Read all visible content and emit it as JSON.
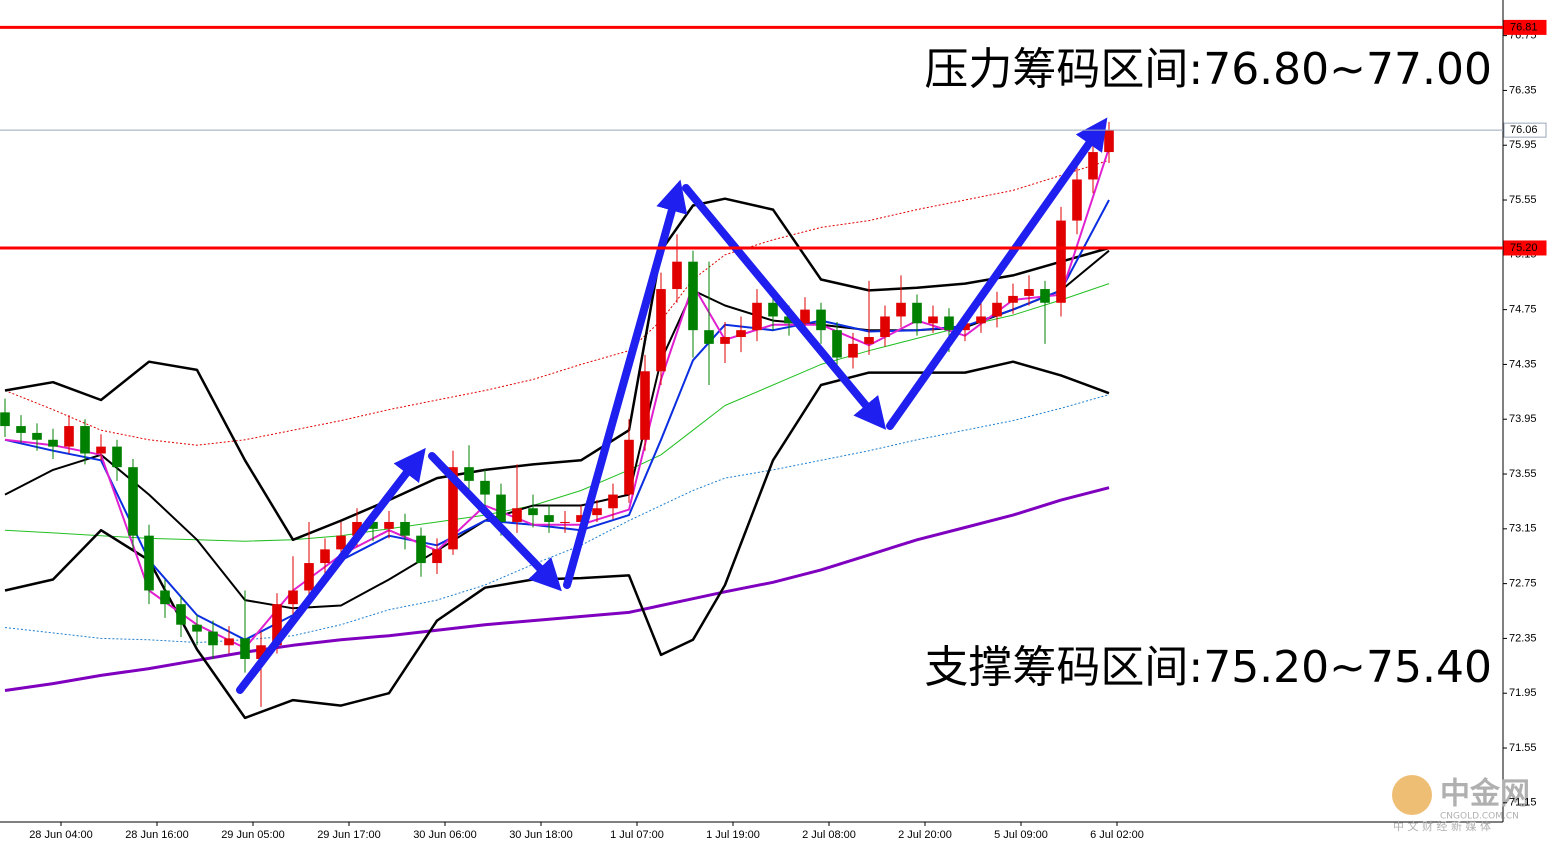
{
  "chart_data": {
    "type": "candlestick",
    "ylim": [
      71.01,
      77.01
    ],
    "yticks": [
      71.15,
      71.55,
      71.95,
      72.35,
      72.75,
      73.15,
      73.55,
      73.95,
      74.35,
      74.75,
      75.15,
      75.55,
      75.95,
      76.35,
      76.75
    ],
    "xlim": [
      -0.3125,
      93.625
    ],
    "xticks": [
      {
        "value": 3.5,
        "label": "28 Jun 04:00"
      },
      {
        "value": 9.5,
        "label": "28 Jun 16:00"
      },
      {
        "value": 15.5,
        "label": "29 Jun 05:00"
      },
      {
        "value": 21.5,
        "label": "29 Jun 17:00"
      },
      {
        "value": 27.5,
        "label": "30 Jun 06:00"
      },
      {
        "value": 33.5,
        "label": "30 Jun 18:00"
      },
      {
        "value": 39.5,
        "label": "1 Jul 07:00"
      },
      {
        "value": 45.5,
        "label": "1 Jul 19:00"
      },
      {
        "value": 51.5,
        "label": "2 Jul 08:00"
      },
      {
        "value": 57.5,
        "label": "2 Jul 20:00"
      },
      {
        "value": 63.5,
        "label": "5 Jul 09:00"
      },
      {
        "value": 69.5,
        "label": "6 Jul 02:00"
      }
    ],
    "up_color": "#e00000",
    "down_color": "#008000",
    "candles": [
      [
        74.0,
        74.1,
        73.82,
        73.9
      ],
      [
        73.9,
        73.98,
        73.78,
        73.85
      ],
      [
        73.85,
        73.92,
        73.72,
        73.8
      ],
      [
        73.8,
        73.88,
        73.66,
        73.75
      ],
      [
        73.75,
        73.98,
        73.7,
        73.9
      ],
      [
        73.9,
        73.95,
        73.62,
        73.7
      ],
      [
        73.7,
        73.84,
        73.65,
        73.75
      ],
      [
        73.75,
        73.8,
        73.5,
        73.6
      ],
      [
        73.6,
        73.66,
        73.0,
        73.1
      ],
      [
        73.1,
        73.18,
        72.6,
        72.7
      ],
      [
        72.7,
        72.78,
        72.5,
        72.6
      ],
      [
        72.6,
        72.66,
        72.36,
        72.45
      ],
      [
        72.45,
        72.52,
        72.3,
        72.4
      ],
      [
        72.4,
        72.48,
        72.2,
        72.3
      ],
      [
        72.3,
        72.44,
        72.24,
        72.35
      ],
      [
        72.35,
        72.7,
        72.1,
        72.2
      ],
      [
        72.2,
        72.4,
        71.85,
        72.3
      ],
      [
        72.3,
        72.68,
        72.24,
        72.6
      ],
      [
        72.6,
        72.95,
        72.52,
        72.7
      ],
      [
        72.7,
        73.2,
        72.64,
        72.9
      ],
      [
        72.9,
        73.08,
        72.8,
        73.0
      ],
      [
        73.0,
        73.2,
        72.92,
        73.1
      ],
      [
        73.1,
        73.3,
        73.02,
        73.2
      ],
      [
        73.2,
        73.28,
        73.06,
        73.15
      ],
      [
        73.15,
        73.28,
        73.08,
        73.2
      ],
      [
        73.2,
        73.26,
        73.0,
        73.1
      ],
      [
        73.1,
        73.16,
        72.8,
        72.9
      ],
      [
        72.9,
        73.08,
        72.82,
        73.0
      ],
      [
        73.0,
        73.72,
        72.96,
        73.6
      ],
      [
        73.6,
        73.76,
        73.44,
        73.5
      ],
      [
        73.5,
        73.58,
        73.3,
        73.4
      ],
      [
        73.4,
        73.48,
        73.1,
        73.2
      ],
      [
        73.2,
        73.62,
        73.12,
        73.3
      ],
      [
        73.3,
        73.4,
        73.16,
        73.25
      ],
      [
        73.25,
        73.32,
        73.12,
        73.2
      ],
      [
        73.2,
        73.28,
        73.12,
        73.2
      ],
      [
        73.2,
        73.32,
        73.14,
        73.25
      ],
      [
        73.25,
        73.36,
        73.2,
        73.3
      ],
      [
        73.3,
        73.48,
        73.22,
        73.4
      ],
      [
        73.4,
        73.95,
        73.34,
        73.8
      ],
      [
        73.8,
        74.42,
        73.72,
        74.3
      ],
      [
        74.3,
        75.02,
        74.2,
        74.9
      ],
      [
        74.9,
        75.3,
        74.8,
        75.1
      ],
      [
        75.1,
        75.18,
        74.4,
        74.6
      ],
      [
        74.6,
        75.1,
        74.2,
        74.5
      ],
      [
        74.5,
        74.66,
        74.36,
        74.55
      ],
      [
        74.55,
        74.7,
        74.44,
        74.6
      ],
      [
        74.6,
        74.9,
        74.52,
        74.8
      ],
      [
        74.8,
        74.86,
        74.6,
        74.7
      ],
      [
        74.7,
        74.78,
        74.56,
        74.65
      ],
      [
        74.65,
        74.84,
        74.58,
        74.75
      ],
      [
        74.75,
        74.8,
        74.5,
        74.6
      ],
      [
        74.6,
        74.66,
        74.3,
        74.4
      ],
      [
        74.4,
        74.58,
        74.32,
        74.5
      ],
      [
        74.5,
        74.96,
        74.42,
        74.55
      ],
      [
        74.55,
        74.78,
        74.48,
        74.7
      ],
      [
        74.7,
        75.0,
        74.62,
        74.8
      ],
      [
        74.8,
        74.86,
        74.56,
        74.65
      ],
      [
        74.65,
        74.78,
        74.58,
        74.7
      ],
      [
        74.7,
        74.76,
        74.44,
        74.6
      ],
      [
        74.6,
        74.72,
        74.52,
        74.65
      ],
      [
        74.65,
        74.86,
        74.58,
        74.7
      ],
      [
        74.7,
        74.88,
        74.62,
        74.8
      ],
      [
        74.8,
        74.94,
        74.72,
        74.85
      ],
      [
        74.85,
        75.0,
        74.78,
        74.9
      ],
      [
        74.9,
        74.96,
        74.5,
        74.8
      ],
      [
        74.8,
        75.5,
        74.7,
        75.4
      ],
      [
        75.4,
        75.8,
        75.3,
        75.7
      ],
      [
        75.7,
        76.0,
        75.6,
        75.9
      ],
      [
        75.9,
        76.12,
        75.82,
        76.06
      ]
    ],
    "x": [
      0,
      3,
      6,
      9,
      12,
      15,
      18,
      21,
      24,
      27,
      30,
      33,
      36,
      39,
      41,
      43,
      45,
      48,
      51,
      54,
      57,
      60,
      63,
      66,
      69
    ],
    "series": [
      {
        "color": "#8000c0",
        "width": 3,
        "values": [
          71.97,
          72.02,
          72.08,
          72.13,
          72.19,
          72.25,
          72.3,
          72.34,
          72.37,
          72.41,
          72.45,
          72.48,
          72.51,
          72.54,
          72.59,
          72.64,
          72.69,
          72.76,
          72.85,
          72.96,
          73.07,
          73.16,
          73.25,
          73.36,
          73.45
        ]
      },
      {
        "color": "#22c022",
        "width": 1,
        "values": [
          73.14,
          73.12,
          73.1,
          73.08,
          73.07,
          73.06,
          73.07,
          73.1,
          73.15,
          73.2,
          73.25,
          73.32,
          73.43,
          73.58,
          73.69,
          73.87,
          74.05,
          74.2,
          74.35,
          74.45,
          74.54,
          74.63,
          74.71,
          74.82,
          74.94
        ]
      },
      {
        "color": "#e00000",
        "width": 1,
        "dash": "2 2",
        "values": [
          74.16,
          74.02,
          73.87,
          73.8,
          73.76,
          73.8,
          73.87,
          73.94,
          74.02,
          74.09,
          74.16,
          74.24,
          74.35,
          74.45,
          74.67,
          74.97,
          75.15,
          75.26,
          75.35,
          75.4,
          75.48,
          75.55,
          75.62,
          75.73,
          75.84
        ]
      },
      {
        "color": "#1e7fd0",
        "width": 1,
        "dash": "2 2",
        "values": [
          72.43,
          72.39,
          72.35,
          72.34,
          72.32,
          72.34,
          72.37,
          72.45,
          72.56,
          72.63,
          72.74,
          72.89,
          73.03,
          73.21,
          73.32,
          73.43,
          73.52,
          73.58,
          73.65,
          73.72,
          73.8,
          73.87,
          73.94,
          74.03,
          74.13
        ]
      },
      {
        "color": "#000000",
        "width": 2.5,
        "values": [
          74.16,
          74.22,
          74.09,
          74.37,
          74.31,
          73.65,
          73.07,
          73.21,
          73.36,
          73.52,
          73.58,
          73.62,
          73.65,
          73.87,
          75.18,
          75.51,
          75.56,
          75.48,
          74.97,
          74.89,
          74.91,
          74.94,
          75.0,
          75.1,
          75.2
        ]
      },
      {
        "color": "#000000",
        "width": 2.5,
        "values": [
          72.7,
          72.78,
          73.14,
          72.92,
          72.27,
          71.77,
          71.9,
          71.86,
          71.95,
          72.48,
          72.72,
          72.78,
          72.79,
          72.81,
          72.23,
          72.34,
          72.74,
          73.65,
          74.2,
          74.29,
          74.29,
          74.29,
          74.37,
          74.27,
          74.14
        ]
      },
      {
        "color": "#000000",
        "width": 2,
        "values": [
          73.4,
          73.58,
          73.69,
          73.4,
          73.07,
          72.63,
          72.57,
          72.59,
          72.78,
          72.99,
          73.21,
          73.32,
          73.32,
          73.4,
          74.38,
          74.89,
          74.78,
          74.67,
          74.64,
          74.6,
          74.6,
          74.62,
          74.75,
          74.89,
          75.18
        ]
      },
      {
        "color": "#0a2ee0",
        "width": 2,
        "values": [
          73.8,
          73.72,
          73.65,
          72.92,
          72.52,
          72.34,
          72.52,
          72.92,
          73.1,
          73.03,
          73.21,
          73.18,
          73.14,
          73.25,
          73.8,
          74.38,
          74.64,
          74.6,
          74.67,
          74.59,
          74.6,
          74.63,
          74.75,
          74.89,
          75.55
        ]
      },
      {
        "color": "#e020d0",
        "width": 2,
        "values": [
          73.8,
          73.76,
          73.69,
          72.7,
          72.45,
          72.28,
          72.7,
          72.96,
          73.14,
          72.99,
          73.32,
          73.18,
          73.18,
          73.29,
          74.24,
          74.93,
          74.53,
          74.64,
          74.64,
          74.49,
          74.67,
          74.56,
          74.82,
          74.86,
          75.93
        ]
      }
    ],
    "levels": [
      {
        "value": 76.81,
        "label": "76.81",
        "color": "#ff0000",
        "width": 3,
        "box": "#ff0000",
        "text_color": "#ffffff"
      },
      {
        "value": 75.2,
        "label": "75.20",
        "color": "#ff0000",
        "width": 3,
        "box": "#ff0000",
        "text_color": "#ffffff"
      },
      {
        "value": 76.06,
        "label": "76.06",
        "color": "#9aa7b8",
        "width": 1,
        "box": "#ffffff",
        "text_color": "#000000"
      }
    ],
    "annotations": [
      "压力筹码区间:76.80~77.00",
      "支撑筹码区间:75.20~75.40"
    ]
  },
  "watermark": {
    "name": "中金网",
    "site": "CNGOLD.COM.CN",
    "slogan": "中 文 财 经 新 媒 体"
  }
}
